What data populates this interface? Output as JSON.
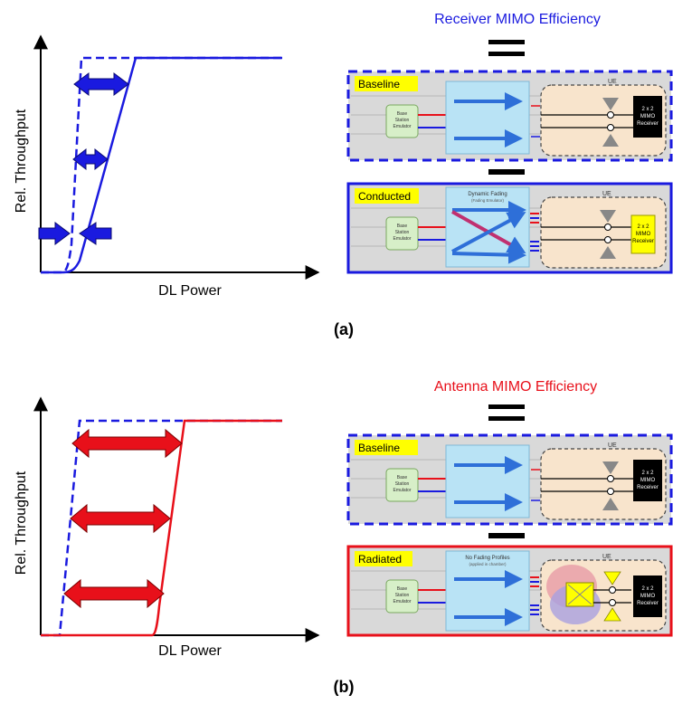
{
  "panel_a": {
    "title": "Receiver MIMO Efficiency",
    "ylabel": "Rel. Throughput",
    "xlabel": "DL Power",
    "caption": "(a)",
    "baseline": {
      "label": "Baseline",
      "ue_label": "UE",
      "bs_label": [
        "Base",
        "Station",
        "Emulator"
      ],
      "receiver_label": [
        "2 x 2",
        "MIMO",
        "Receiver"
      ]
    },
    "test": {
      "label": "Conducted",
      "ue_label": "UE",
      "bs_label": [
        "Base",
        "Station",
        "Emulator"
      ],
      "channel_label": [
        "Dynamic Fading",
        "(Fading Emulator)"
      ],
      "receiver_label": [
        "2 x 2",
        "MIMO",
        "Receiver"
      ]
    }
  },
  "panel_b": {
    "title": "Antenna MIMO Efficiency",
    "ylabel": "Rel. Throughput",
    "xlabel": "DL Power",
    "caption": "(b)",
    "baseline": {
      "label": "Baseline",
      "ue_label": "UE",
      "bs_label": [
        "Base",
        "Station",
        "Emulator"
      ],
      "receiver_label": [
        "2 x 2",
        "MIMO",
        "Receiver"
      ]
    },
    "test": {
      "label": "Radiated",
      "ue_label": "UE",
      "bs_label": [
        "Base",
        "Station",
        "Emulator"
      ],
      "channel_label": [
        "No Fading Profiles",
        "(applied in chamber)"
      ],
      "receiver_label": [
        "2 x 2",
        "MIMO",
        "Receiver"
      ]
    }
  },
  "colors": {
    "blue": "#1a1adf",
    "red": "#e8101a",
    "box_bg": "#d9d9d9",
    "ue_bg": "#f8e4cc",
    "channel_bg": "#b9e3f5",
    "label_yellow": "#ffff00",
    "bs_green": "#d7efc8"
  }
}
